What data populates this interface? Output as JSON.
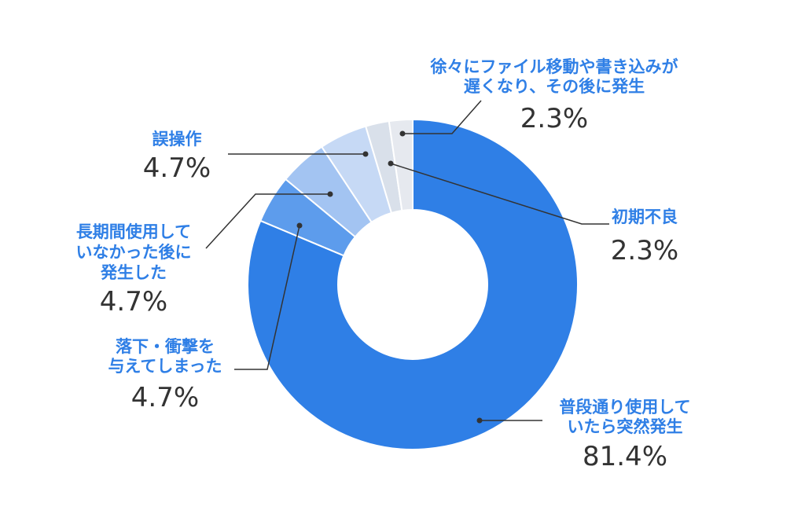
{
  "chart_data": {
    "type": "donut",
    "categories": [
      [
        "普段通り使用して",
        "いたら突然発生"
      ],
      [
        "落下・衝撃を",
        "与えてしまった"
      ],
      [
        "長期間使用して",
        "いなかった後に",
        "発生した"
      ],
      [
        "誤操作"
      ],
      [
        "初期不良"
      ],
      [
        "徐々にファイル移動や書き込みが",
        "遅くなり、その後に発生"
      ]
    ],
    "values": [
      81.4,
      4.7,
      4.7,
      4.7,
      2.3,
      2.3
    ],
    "value_labels": [
      "81.4%",
      "4.7%",
      "4.7%",
      "4.7%",
      "2.3%",
      "2.3%"
    ],
    "colors": [
      "#2f7fe6",
      "#5d9cec",
      "#a3c4f2",
      "#c6d9f5",
      "#d9e0ea",
      "#e6e9ef"
    ]
  }
}
